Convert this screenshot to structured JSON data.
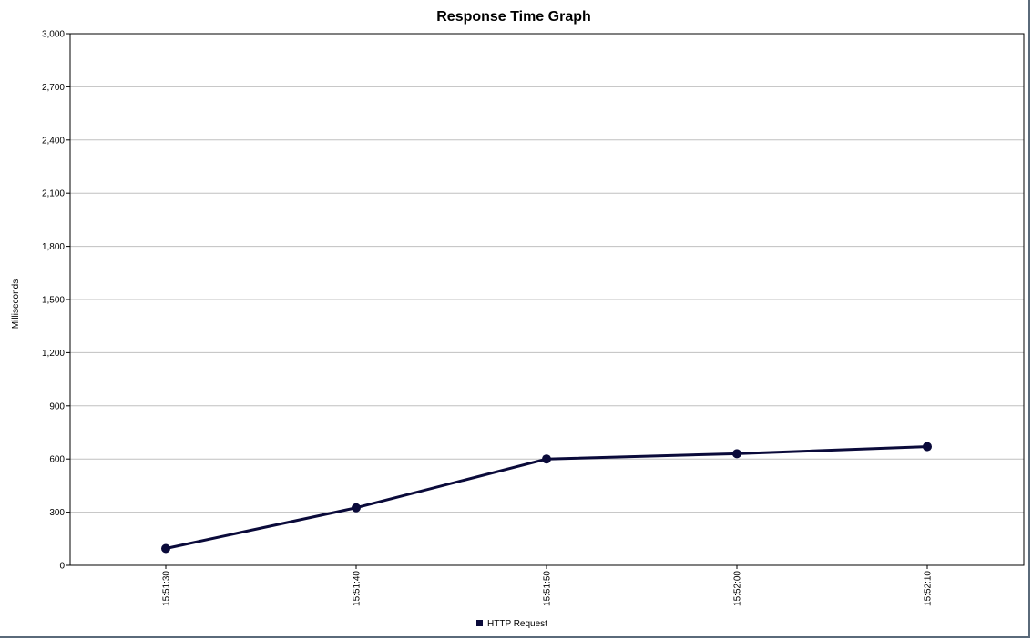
{
  "chart_data": {
    "type": "line",
    "title": "Response Time Graph",
    "xlabel": "",
    "ylabel": "Milliseconds",
    "categories": [
      "15:51:30",
      "15:51:40",
      "15:51:50",
      "15:52:00",
      "15:52:10"
    ],
    "series": [
      {
        "name": "HTTP Request",
        "values": [
          95,
          325,
          600,
          630,
          670
        ],
        "color": "#0a0a3a"
      }
    ],
    "ylim": [
      0,
      3000
    ],
    "yticks": [
      "0",
      "300",
      "600",
      "900",
      "1,200",
      "1,500",
      "1,800",
      "2,100",
      "2,400",
      "2,700",
      "3,000"
    ],
    "ytick_values": [
      0,
      300,
      600,
      900,
      1200,
      1500,
      1800,
      2100,
      2400,
      2700,
      3000
    ],
    "grid": true,
    "legend": "bottom-center"
  }
}
